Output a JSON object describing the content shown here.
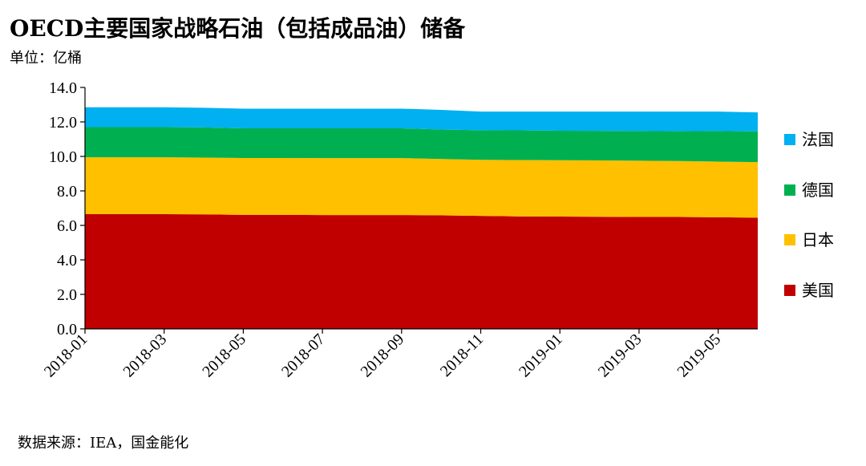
{
  "title": "OECD主要国家战略石油（包括成品油）储备",
  "unit_label": "单位：亿桶",
  "source": "数据来源：IEA，国金能化",
  "chart_data": {
    "type": "area",
    "stacked": true,
    "x": [
      "2018-01",
      "2018-02",
      "2018-03",
      "2018-04",
      "2018-05",
      "2018-06",
      "2018-07",
      "2018-08",
      "2018-09",
      "2018-10",
      "2018-11",
      "2018-12",
      "2019-01",
      "2019-02",
      "2019-03",
      "2019-04",
      "2019-05",
      "2019-06"
    ],
    "x_tick_labels": [
      "2018-01",
      "2018-03",
      "2018-05",
      "2018-07",
      "2018-09",
      "2018-11",
      "2019-01",
      "2019-03",
      "2019-05"
    ],
    "ylim": [
      0,
      14
    ],
    "y_ticks": [
      "0.0",
      "2.0",
      "4.0",
      "6.0",
      "8.0",
      "10.0",
      "12.0",
      "14.0"
    ],
    "grid": false,
    "legend_position": "right",
    "series": [
      {
        "name": "美国",
        "color": "#C00000",
        "values": [
          6.65,
          6.65,
          6.65,
          6.64,
          6.61,
          6.61,
          6.6,
          6.6,
          6.6,
          6.58,
          6.55,
          6.52,
          6.51,
          6.5,
          6.49,
          6.49,
          6.47,
          6.45
        ]
      },
      {
        "name": "日本",
        "color": "#FFC000",
        "values": [
          3.3,
          3.3,
          3.3,
          3.29,
          3.3,
          3.3,
          3.3,
          3.3,
          3.3,
          3.27,
          3.25,
          3.27,
          3.27,
          3.27,
          3.26,
          3.24,
          3.23,
          3.22
        ]
      },
      {
        "name": "德国",
        "color": "#00B050",
        "values": [
          1.75,
          1.75,
          1.75,
          1.75,
          1.72,
          1.72,
          1.73,
          1.73,
          1.73,
          1.71,
          1.72,
          1.72,
          1.71,
          1.71,
          1.72,
          1.73,
          1.77,
          1.78
        ]
      },
      {
        "name": "法国",
        "color": "#00B0F0",
        "values": [
          1.15,
          1.15,
          1.15,
          1.14,
          1.14,
          1.14,
          1.14,
          1.14,
          1.14,
          1.14,
          1.08,
          1.09,
          1.11,
          1.12,
          1.13,
          1.14,
          1.13,
          1.1
        ]
      }
    ],
    "legend_order": [
      "法国",
      "德国",
      "日本",
      "美国"
    ]
  }
}
